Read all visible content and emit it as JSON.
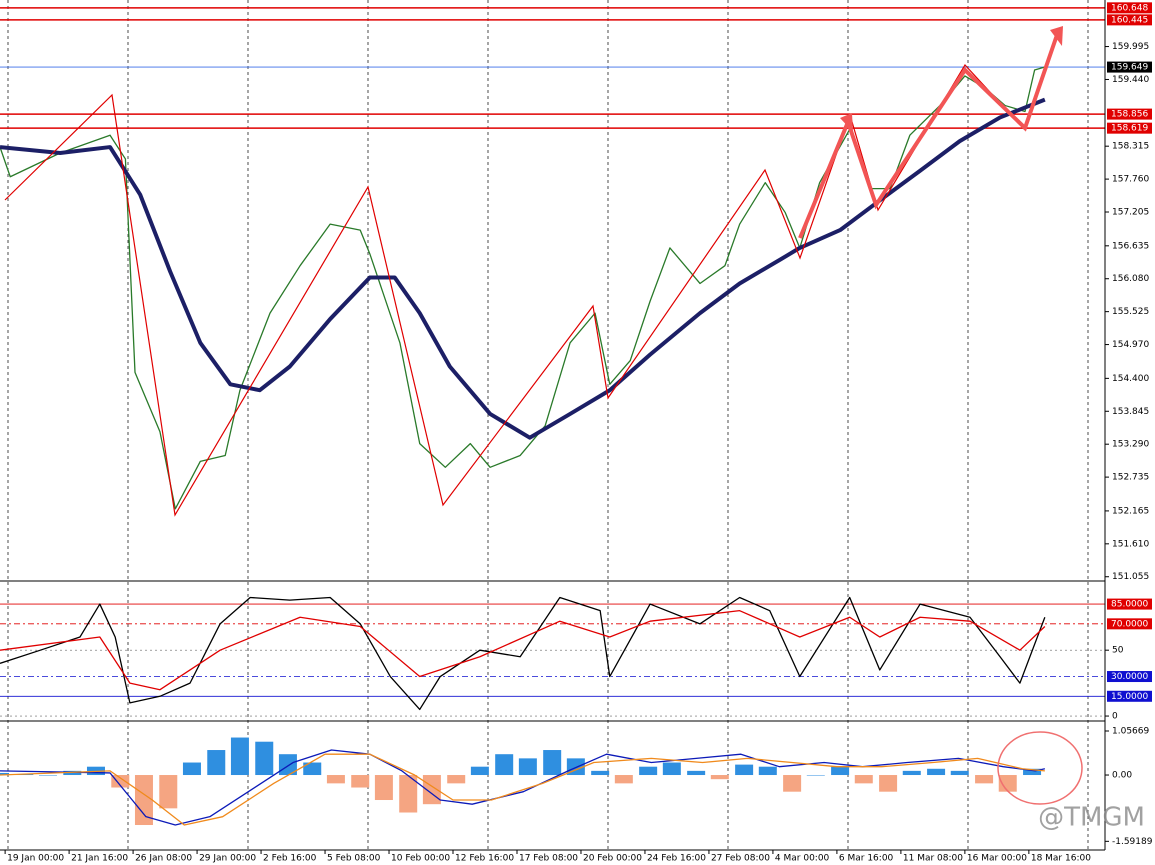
{
  "chart_data": [
    {
      "type": "line",
      "xlim": [
        -0.08,
        17.19
      ],
      "xticks": [
        {
          "value": 0,
          "label": "19 Jan 00:00"
        },
        {
          "value": 1,
          "label": "21 Jan 16:00"
        },
        {
          "value": 2,
          "label": "26 Jan 08:00"
        },
        {
          "value": 3,
          "label": "29 Jan 00:00"
        },
        {
          "value": 4,
          "label": "2 Feb 16:00"
        },
        {
          "value": 5,
          "label": "5 Feb 08:00"
        },
        {
          "value": 6,
          "label": "10 Feb 00:00"
        },
        {
          "value": 7,
          "label": "12 Feb 16:00"
        },
        {
          "value": 8,
          "label": "17 Feb 08:00"
        },
        {
          "value": 9,
          "label": "20 Feb 00:00"
        },
        {
          "value": 10,
          "label": "24 Feb 16:00"
        },
        {
          "value": 11,
          "label": "27 Feb 08:00"
        },
        {
          "value": 12,
          "label": "4 Mar 00:00"
        },
        {
          "value": 13,
          "label": "6 Mar 16:00"
        },
        {
          "value": 14,
          "label": "11 Mar 08:00"
        },
        {
          "value": 15,
          "label": "16 Mar 00:00"
        },
        {
          "value": 16,
          "label": "18 Mar 16:00"
        }
      ],
      "ylim": [
        151.0,
        160.78
      ],
      "yticks": [
        159.995,
        {
          "value": 159.44,
          "label": "159.440"
        },
        158.315,
        {
          "value": 157.76,
          "label": "157.760"
        },
        157.205,
        156.635,
        {
          "value": 156.08,
          "label": "156.080"
        },
        155.525,
        {
          "value": 154.97,
          "label": "154.970"
        },
        {
          "value": 154.4,
          "label": "154.400"
        },
        153.845,
        {
          "value": 153.29,
          "label": "153.290"
        },
        152.735,
        152.165,
        {
          "value": 151.61,
          "label": "151.610"
        },
        151.055
      ],
      "levels": [
        {
          "value": 160.648,
          "color": "#e00000",
          "box": "#e00000"
        },
        {
          "value": 160.445,
          "color": "#e00000",
          "box": "#e00000"
        },
        {
          "value": 159.649,
          "color": "#3a6ee8",
          "box": "#000000"
        },
        {
          "value": 158.856,
          "color": "#e00000",
          "box": "#e00000"
        },
        {
          "value": 158.619,
          "color": "#e00000",
          "box": "#e00000"
        }
      ],
      "series": [
        {
          "color": "#2a7a2a",
          "x": [
            -0.08,
            0.08,
            0.86,
            1.64,
            1.88,
            2.03,
            2.42,
            2.66,
            3.05,
            3.44,
            3.67,
            4.14,
            4.61,
            5.08,
            5.55,
            5.7,
            6.17,
            6.48,
            6.88,
            7.27,
            7.58,
            8.05,
            8.44,
            8.83,
            9.22,
            9.45,
            9.77,
            10.08,
            10.39,
            10.86,
            11.25,
            11.48,
            11.88,
            12.19,
            12.42,
            12.73,
            13.2,
            13.52,
            13.83,
            14.14,
            14.61,
            15.0,
            15.31,
            15.63,
            15.94,
            16.09,
            16.25
          ],
          "values": [
            158.3,
            157.8,
            158.2,
            158.5,
            158.1,
            154.5,
            153.5,
            152.2,
            153.0,
            153.1,
            154.2,
            155.5,
            156.3,
            157.0,
            156.9,
            156.5,
            155.0,
            153.3,
            152.9,
            153.3,
            152.9,
            153.1,
            153.6,
            155.0,
            155.5,
            154.3,
            154.7,
            155.7,
            156.6,
            156.0,
            156.3,
            157.0,
            157.7,
            157.2,
            156.6,
            157.7,
            158.6,
            157.6,
            157.6,
            158.5,
            159.0,
            159.5,
            159.3,
            159.0,
            158.9,
            159.6,
            159.65
          ]
        },
        {
          "color": "#1c1f66",
          "width": 4,
          "x": [
            -0.08,
            0.86,
            1.64,
            2.11,
            2.58,
            3.05,
            3.52,
            3.98,
            4.45,
            5.08,
            5.7,
            6.09,
            6.48,
            6.95,
            7.58,
            8.2,
            8.83,
            9.45,
            10.08,
            10.86,
            11.48,
            12.11,
            12.42,
            13.05,
            13.67,
            14.3,
            14.92,
            15.55,
            16.25
          ],
          "values": [
            158.3,
            158.2,
            158.3,
            157.5,
            156.2,
            155.0,
            154.3,
            154.2,
            154.6,
            155.4,
            156.1,
            156.1,
            155.5,
            154.6,
            153.8,
            153.4,
            153.8,
            154.2,
            154.8,
            155.5,
            156.0,
            156.4,
            156.6,
            156.9,
            157.4,
            157.9,
            158.4,
            158.8,
            159.1
          ]
        }
      ]
    },
    {
      "type": "line",
      "ylim": [
        -3,
        101
      ],
      "yticks": [
        50,
        0
      ],
      "levels": [
        {
          "value": 85,
          "label": "85.0000",
          "color": "#e00000",
          "box": "#e00000"
        },
        {
          "value": 70,
          "label": "70.0000",
          "color": "#e00000",
          "box": "#e00000"
        },
        {
          "value": 30,
          "label": "30.0000",
          "color": "#1010d0",
          "box": "#1010d0"
        },
        {
          "value": 15,
          "label": "15.0000",
          "color": "#1010d0",
          "box": "#1010d0"
        }
      ],
      "series": [
        {
          "color": "#000000",
          "x": [
            -0.08,
            0.55,
            1.17,
            1.48,
            1.72,
            1.95,
            2.42,
            2.89,
            3.36,
            3.83,
            4.45,
            5.08,
            5.55,
            6.02,
            6.48,
            6.8,
            7.42,
            8.05,
            8.67,
            9.3,
            9.45,
            10.08,
            10.86,
            11.48,
            11.95,
            12.42,
            13.2,
            13.67,
            14.3,
            15.08,
            15.55,
            15.86,
            16.25
          ],
          "values": [
            40,
            50,
            60,
            85,
            60,
            10,
            15,
            25,
            70,
            90,
            88,
            90,
            70,
            30,
            5,
            30,
            50,
            45,
            90,
            80,
            30,
            85,
            70,
            90,
            80,
            30,
            90,
            35,
            85,
            75,
            45,
            25,
            75
          ]
        },
        {
          "color": "#e00000",
          "x": [
            -0.08,
            1.48,
            1.95,
            2.42,
            3.36,
            4.61,
            5.55,
            6.48,
            7.42,
            8.67,
            9.45,
            10.08,
            11.48,
            12.42,
            13.2,
            13.67,
            14.3,
            15.08,
            15.86,
            16.25
          ],
          "values": [
            50,
            60,
            25,
            20,
            50,
            75,
            68,
            30,
            45,
            72,
            60,
            72,
            80,
            60,
            75,
            60,
            75,
            72,
            50,
            68
          ]
        }
      ]
    },
    {
      "type": "bar",
      "ylim": [
        -1.8,
        1.249
      ],
      "yticks": [
        1.05669,
        {
          "value": 0,
          "label": "0.00"
        },
        -1.59189
      ],
      "bars": {
        "color": "#2f8fe0",
        "negative_color": "#f5a582",
        "x": [
          -0.08,
          0.3,
          0.67,
          1.05,
          1.42,
          1.8,
          2.17,
          2.55,
          2.92,
          3.3,
          3.67,
          4.05,
          4.42,
          4.8,
          5.17,
          5.55,
          5.92,
          6.3,
          6.67,
          7.05,
          7.42,
          7.8,
          8.17,
          8.55,
          8.92,
          9.3,
          9.67,
          10.05,
          10.42,
          10.8,
          11.17,
          11.55,
          11.92,
          12.3,
          12.67,
          13.05,
          13.42,
          13.8,
          14.17,
          14.55,
          14.92,
          15.3,
          15.67,
          16.05
        ],
        "values": [
          0.05,
          0.02,
          0.0,
          0.1,
          0.2,
          -0.3,
          -1.2,
          -0.8,
          0.3,
          0.6,
          0.9,
          0.8,
          0.5,
          0.3,
          -0.2,
          -0.3,
          -0.6,
          -0.9,
          -0.7,
          -0.2,
          0.2,
          0.5,
          0.4,
          0.6,
          0.4,
          0.1,
          -0.2,
          0.2,
          0.3,
          0.1,
          -0.1,
          0.25,
          0.2,
          -0.4,
          0.0,
          0.2,
          -0.2,
          -0.4,
          0.1,
          0.15,
          0.1,
          -0.2,
          -0.4,
          0.15
        ]
      },
      "series": [
        {
          "color": "#0c1ab8",
          "x": [
            -0.08,
            1.64,
            2.2,
            2.66,
            3.2,
            3.9,
            4.5,
            5.1,
            5.7,
            6.2,
            6.8,
            7.3,
            8.1,
            8.8,
            9.4,
            10.1,
            10.8,
            11.5,
            12.1,
            12.8,
            13.4,
            14.1,
            14.9,
            15.6,
            16.1,
            16.25
          ],
          "values": [
            0.1,
            0.05,
            -1.0,
            -1.2,
            -1.0,
            -0.3,
            0.3,
            0.6,
            0.5,
            0.1,
            -0.6,
            -0.7,
            -0.4,
            0.1,
            0.5,
            0.3,
            0.4,
            0.5,
            0.2,
            0.3,
            0.2,
            0.3,
            0.4,
            0.2,
            0.1,
            0.15
          ]
        },
        {
          "color": "#f08a1c",
          "x": [
            -0.08,
            1.64,
            2.3,
            2.8,
            3.4,
            4.2,
            5.0,
            5.7,
            6.4,
            7.0,
            7.6,
            8.4,
            9.2,
            10.1,
            10.9,
            11.6,
            12.3,
            13.0,
            13.7,
            14.5,
            15.2,
            15.9,
            16.25
          ],
          "values": [
            0.0,
            0.1,
            -0.6,
            -1.2,
            -1.0,
            -0.2,
            0.5,
            0.5,
            0.0,
            -0.6,
            -0.6,
            -0.2,
            0.3,
            0.4,
            0.3,
            0.4,
            0.3,
            0.2,
            0.2,
            0.3,
            0.4,
            0.15,
            0.1
          ]
        }
      ]
    }
  ],
  "watermark": "@TMGM"
}
